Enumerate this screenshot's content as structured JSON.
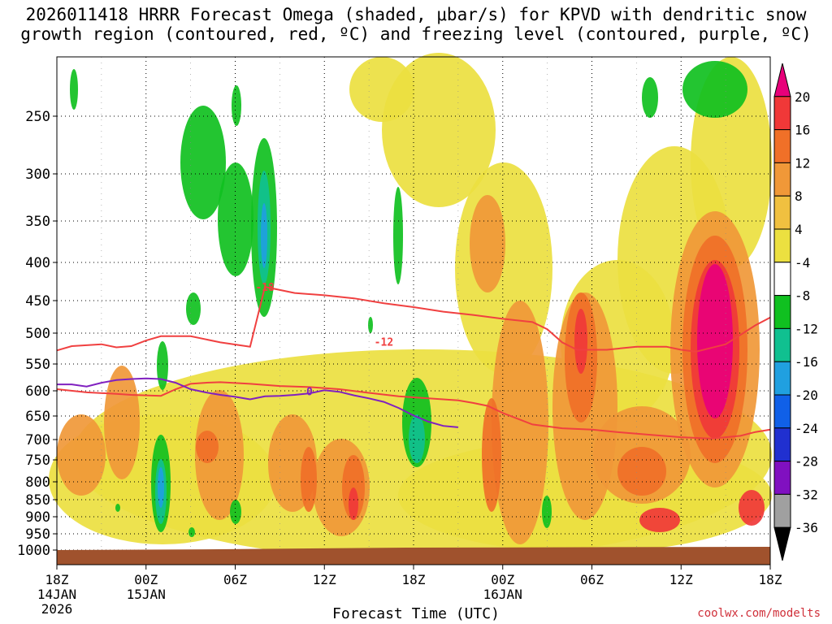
{
  "chart_data": {
    "type": "heatmap",
    "title_line1": "2026011418 HRRR Forecast Omega (shaded, μbar/s) for KPVD with dendritic snow",
    "title_line2": "growth region (contoured, red, ºC) and freezing level (contoured, purple, ºC)",
    "xlabel": "Forecast Time (UTC)",
    "ylabel": "",
    "credit": "coolwx.com/modelts",
    "x_range_hours": [
      0,
      48
    ],
    "x_ticks": [
      {
        "hour": 0,
        "label": "18Z",
        "date": "14JAN",
        "year": "2026"
      },
      {
        "hour": 6,
        "label": "00Z",
        "date": "15JAN",
        "year": ""
      },
      {
        "hour": 12,
        "label": "06Z",
        "date": "",
        "year": ""
      },
      {
        "hour": 18,
        "label": "12Z",
        "date": "",
        "year": ""
      },
      {
        "hour": 24,
        "label": "18Z",
        "date": "",
        "year": ""
      },
      {
        "hour": 30,
        "label": "00Z",
        "date": "16JAN",
        "year": ""
      },
      {
        "hour": 36,
        "label": "06Z",
        "date": "",
        "year": ""
      },
      {
        "hour": 42,
        "label": "12Z",
        "date": "",
        "year": ""
      },
      {
        "hour": 48,
        "label": "18Z",
        "date": "",
        "year": ""
      }
    ],
    "y_range_hpa": [
      1000,
      200
    ],
    "y_ticks": [
      250,
      300,
      350,
      400,
      450,
      500,
      550,
      600,
      650,
      700,
      750,
      800,
      850,
      900,
      950,
      1000
    ],
    "colorbar": {
      "levels": [
        20,
        16,
        12,
        8,
        4,
        -4,
        -8,
        -12,
        -16,
        -20,
        -24,
        -28,
        -32,
        -36
      ],
      "colors": [
        "#e8007a",
        "#f03838",
        "#f07028",
        "#f09838",
        "#f0c040",
        "#ece040",
        "#ffffff",
        "#10c020",
        "#10c090",
        "#20a0e0",
        "#1060e8",
        "#2030d0",
        "#8010c0",
        "#a0a0a0",
        "#000000"
      ]
    },
    "contours": [
      {
        "name": "dgz-minus18",
        "color": "#f04040",
        "label": "-18",
        "points": [
          [
            0,
            528
          ],
          [
            1,
            521
          ],
          [
            3,
            518
          ],
          [
            4,
            523
          ],
          [
            5,
            521
          ],
          [
            6,
            512
          ],
          [
            7,
            505
          ],
          [
            9,
            505
          ],
          [
            11,
            515
          ],
          [
            13,
            522
          ],
          [
            14,
            432
          ],
          [
            16,
            440
          ],
          [
            18,
            443
          ],
          [
            20,
            447
          ],
          [
            22,
            454
          ],
          [
            24,
            460
          ],
          [
            26,
            467
          ],
          [
            28,
            472
          ],
          [
            30,
            478
          ],
          [
            32,
            483
          ],
          [
            33,
            494
          ],
          [
            34,
            515
          ],
          [
            35,
            527
          ],
          [
            37,
            527
          ],
          [
            39,
            522
          ],
          [
            41,
            522
          ],
          [
            42,
            527
          ],
          [
            43,
            530
          ],
          [
            45,
            518
          ],
          [
            47,
            488
          ],
          [
            48,
            476
          ]
        ],
        "label_at": [
          14,
          432
        ]
      },
      {
        "name": "dgz-minus12",
        "color": "#f04040",
        "label": "-12",
        "points": [
          [
            0,
            597
          ],
          [
            2,
            603
          ],
          [
            4,
            606
          ],
          [
            5,
            608
          ],
          [
            7,
            610
          ],
          [
            8,
            597
          ],
          [
            9,
            587
          ],
          [
            10,
            585
          ],
          [
            11,
            584
          ],
          [
            13,
            587
          ],
          [
            15,
            591
          ],
          [
            17,
            593
          ],
          [
            19,
            597
          ],
          [
            21,
            604
          ],
          [
            23,
            611
          ],
          [
            25,
            615
          ],
          [
            27,
            619
          ],
          [
            28,
            624
          ],
          [
            29,
            630
          ],
          [
            30,
            644
          ],
          [
            32,
            668
          ],
          [
            34,
            676
          ],
          [
            36,
            679
          ],
          [
            38,
            685
          ],
          [
            40,
            690
          ],
          [
            42,
            695
          ],
          [
            44,
            698
          ],
          [
            46,
            692
          ],
          [
            47,
            684
          ],
          [
            48,
            679
          ]
        ],
        "label_at": [
          22,
          514
        ]
      },
      {
        "name": "freezing-level-0",
        "color": "#8020c0",
        "label": "0",
        "points": [
          [
            0,
            588
          ],
          [
            1,
            588
          ],
          [
            2,
            592
          ],
          [
            3,
            585
          ],
          [
            4,
            580
          ],
          [
            5,
            578
          ],
          [
            6,
            577
          ],
          [
            7,
            578
          ],
          [
            8,
            585
          ],
          [
            9,
            597
          ],
          [
            10,
            603
          ],
          [
            11,
            608
          ],
          [
            12,
            612
          ],
          [
            13,
            617
          ],
          [
            14,
            611
          ],
          [
            15,
            610
          ],
          [
            16,
            608
          ],
          [
            17,
            605
          ],
          [
            18,
            599
          ],
          [
            19,
            602
          ],
          [
            20,
            609
          ],
          [
            21,
            615
          ],
          [
            22,
            622
          ],
          [
            23,
            634
          ],
          [
            24,
            649
          ],
          [
            25,
            662
          ],
          [
            26,
            671
          ],
          [
            27,
            674
          ]
        ],
        "label_at": [
          17,
          601
        ]
      }
    ],
    "shaded_regions_description": "Omega shading across the forecast period"
  }
}
